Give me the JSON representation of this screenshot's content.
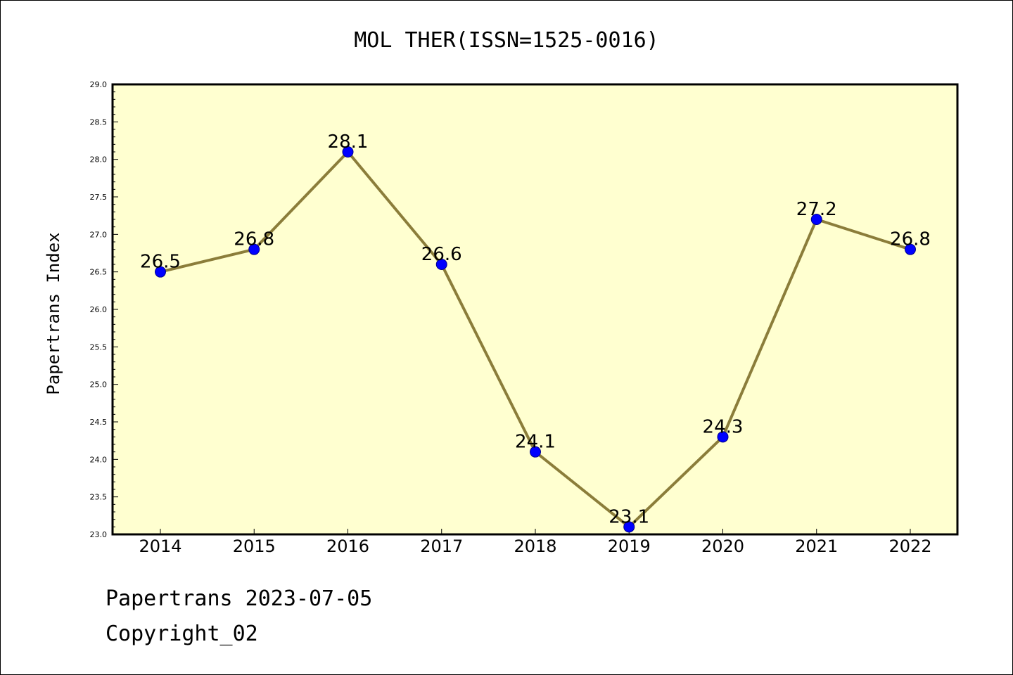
{
  "chart_data": {
    "type": "line",
    "title": "MOL THER(ISSN=1525-0016)",
    "xlabel": "",
    "ylabel": "Papertrans Index",
    "categories": [
      "2014",
      "2015",
      "2016",
      "2017",
      "2018",
      "2019",
      "2020",
      "2021",
      "2022"
    ],
    "series": [
      {
        "values": [
          26.5,
          26.8,
          28.1,
          26.6,
          24.1,
          23.1,
          24.3,
          27.2,
          26.8
        ]
      }
    ],
    "data_labels": [
      "26.5",
      "26.8",
      "28.1",
      "26.6",
      "24.1",
      "23.1",
      "24.3",
      "27.2",
      "26.8"
    ],
    "ylim": [
      23.0,
      29.0
    ],
    "yticks": [
      "23.0",
      "23.5",
      "24.0",
      "24.5",
      "25.0",
      "25.5",
      "26.0",
      "26.5",
      "27.0",
      "27.5",
      "28.0",
      "28.5",
      "29.0"
    ],
    "grid": false,
    "colors": {
      "plot_background": "#ffffd0",
      "line": "#8b7d3a",
      "marker": "#0000ff"
    }
  },
  "footer": {
    "date_line": "Papertrans 2023-07-05",
    "copyright": "Copyright_02"
  }
}
